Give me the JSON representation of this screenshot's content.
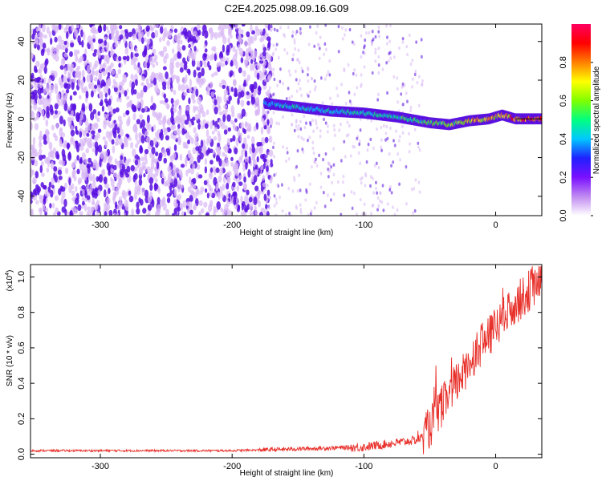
{
  "title": "C2E4.2025.098.09.16.G09",
  "colors": {
    "snr_line": "#e8302a",
    "dots_light": "#d9b8f5",
    "dots_dark": "#5a10e0",
    "ridge_line": "#000000"
  },
  "chart_data": [
    {
      "type": "heatmap",
      "title": "",
      "xlabel": "Height of straight line (km)",
      "ylabel": "Frequency (Hz)",
      "xlim": [
        -353,
        35
      ],
      "ylim": [
        -50,
        49
      ],
      "xticks": [
        "-300",
        "-200",
        "-100",
        "0"
      ],
      "yticks": [
        "40",
        "20",
        "0",
        "-20",
        "-40"
      ],
      "colorbar": {
        "label": "Normalized spectral amplitude",
        "range": [
          0,
          1
        ],
        "ticks": [
          "0.0",
          "0.2",
          "0.4",
          "0.6",
          "0.8"
        ],
        "colors": [
          "#ffffff",
          "#c08af0",
          "#7a10ff",
          "#2020ff",
          "#00c8ff",
          "#00ff80",
          "#80ff00",
          "#ffff00",
          "#ff8000",
          "#ff0000",
          "#ff0060"
        ]
      },
      "ridge": {
        "x": [
          -175,
          -150,
          -125,
          -100,
          -75,
          -50,
          -35,
          -20,
          -5,
          0,
          5,
          15,
          35
        ],
        "frequency": [
          8,
          6,
          4,
          3,
          1,
          -2,
          -3,
          -1,
          0,
          1,
          2,
          0,
          0
        ],
        "amplitude": [
          0.45,
          0.5,
          0.5,
          0.55,
          0.55,
          0.65,
          0.7,
          0.8,
          0.85,
          0.85,
          0.85,
          0.95,
          1.0
        ]
      },
      "noise_cutoff_x": -175
    },
    {
      "type": "line",
      "title": "",
      "xlabel": "Height of straight line (km)",
      "ylabel": "SNR (10 * v/v)",
      "scale_label": "(x10",
      "scale_exponent": "4",
      "xlim": [
        -353,
        35
      ],
      "ylim": [
        -0.02,
        1.07
      ],
      "xticks": [
        "-300",
        "-200",
        "-100",
        "0"
      ],
      "yticks": [
        "0.0",
        "0.2",
        "0.4",
        "0.6",
        "0.8",
        "1.0"
      ],
      "series": [
        {
          "color": "#e8302a",
          "x": [
            -353,
            -300,
            -250,
            -200,
            -175,
            -150,
            -125,
            -100,
            -90,
            -80,
            -70,
            -60,
            -55,
            -50,
            -45,
            -40,
            -35,
            -30,
            -25,
            -20,
            -15,
            -10,
            -5,
            0,
            5,
            10,
            15,
            20,
            25,
            30,
            35
          ],
          "y": [
            0.02,
            0.02,
            0.02,
            0.02,
            0.025,
            0.03,
            0.035,
            0.04,
            0.05,
            0.06,
            0.07,
            0.08,
            0.1,
            0.15,
            0.22,
            0.28,
            0.34,
            0.4,
            0.45,
            0.52,
            0.58,
            0.62,
            0.66,
            0.72,
            0.76,
            0.8,
            0.85,
            0.88,
            0.92,
            0.96,
            0.99
          ]
        }
      ]
    }
  ]
}
